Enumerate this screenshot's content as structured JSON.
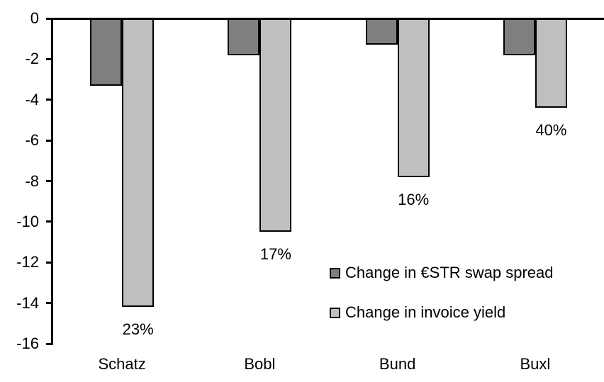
{
  "chart_data": {
    "type": "bar",
    "title": "",
    "xlabel": "",
    "ylabel": "",
    "categories": [
      "Schatz",
      "Bobl",
      "Bund",
      "Buxl"
    ],
    "series": [
      {
        "name": "Change in €STR swap spread",
        "color": "#7f7f7f",
        "values": [
          -3.3,
          -1.8,
          -1.3,
          -1.8
        ]
      },
      {
        "name": "Change in invoice yield",
        "color": "#bfbfbf",
        "values": [
          -14.2,
          -10.5,
          -7.8,
          -4.4
        ],
        "data_labels": [
          "23%",
          "17%",
          "16%",
          "40%"
        ]
      }
    ],
    "ylim": [
      -16,
      0
    ],
    "ytick_step": 2,
    "ytick_labels": [
      "0",
      "-2",
      "-4",
      "-6",
      "-8",
      "-10",
      "-12",
      "-14",
      "-16"
    ],
    "grid": false,
    "legend_position": "inside-right",
    "axis_color": "#000000",
    "bar_border_color": "#000000",
    "background_color": "#ffffff"
  }
}
